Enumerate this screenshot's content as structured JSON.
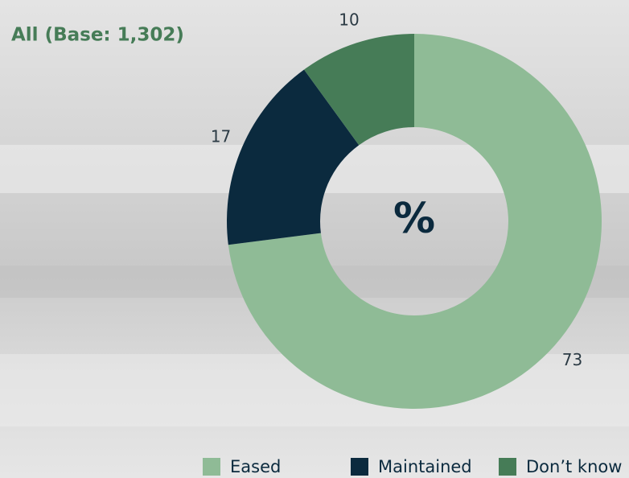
{
  "chart_data": {
    "type": "donut",
    "title": "All (Base: 1,302)",
    "center_label": "%",
    "categories": [
      "Eased",
      "Maintained",
      "Don’t know"
    ],
    "values": [
      73,
      17,
      10
    ],
    "colors": [
      "#8fbb96",
      "#0b2a3e",
      "#467c57"
    ]
  }
}
